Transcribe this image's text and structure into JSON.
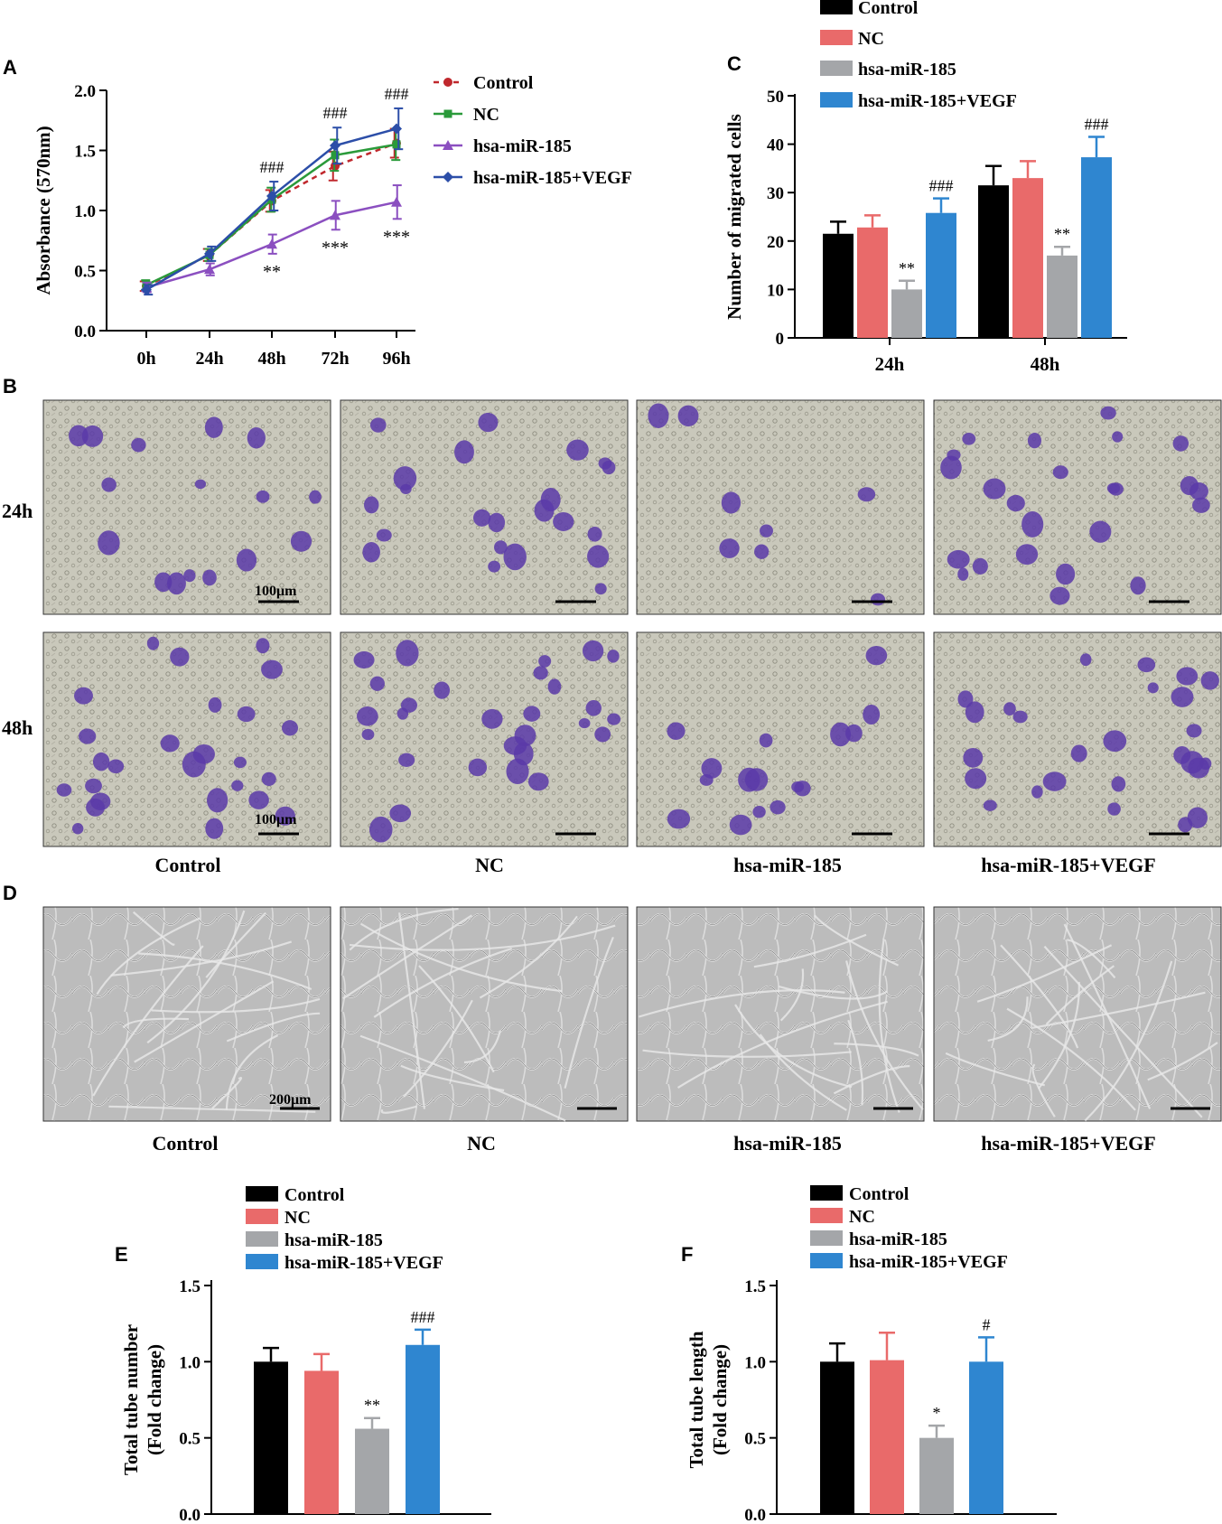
{
  "panels": {
    "A": "A",
    "B": "B",
    "C": "C",
    "D": "D",
    "E": "E",
    "F": "F"
  },
  "colors": {
    "control": "#000000",
    "nc": "#e96a6a",
    "mir185": "#a4a6a9",
    "vegf": "#2f86d0",
    "lineControl": "#c0282d",
    "lineNC": "#2a9a3a",
    "lineMir": "#8b4fc0",
    "lineVegf": "#2c4ea8",
    "stainPurple": "#5a3aa8",
    "micrographBg": "#c9c8bb",
    "tubeBg": "#b9b9b9"
  },
  "legend": [
    "Control",
    "NC",
    "hsa-miR-185",
    "hsa-miR-185+VEGF"
  ],
  "panelB": {
    "row_labels": [
      "24h",
      "48h"
    ],
    "scale_bar": "100μm",
    "column_labels": [
      "Control",
      "NC",
      "hsa-miR-185",
      "hsa-miR-185+VEGF"
    ]
  },
  "panelD": {
    "scale_bar": "200μm",
    "column_labels": [
      "Control",
      "NC",
      "hsa-miR-185",
      "hsa-miR-185+VEGF"
    ]
  },
  "chart_data": [
    {
      "panel": "A",
      "type": "line",
      "xlabel": "",
      "ylabel": "Absorbance (570nm)",
      "categories": [
        "0h",
        "24h",
        "48h",
        "72h",
        "96h"
      ],
      "ylim": [
        0,
        2.0
      ],
      "yticks": [
        "0.0",
        "0.5",
        "1.0",
        "1.5",
        "2.0"
      ],
      "series": [
        {
          "name": "Control",
          "values": [
            0.37,
            0.63,
            1.08,
            1.37,
            1.56
          ],
          "errors": [
            0.04,
            0.05,
            0.09,
            0.12,
            0.12
          ]
        },
        {
          "name": "NC",
          "values": [
            0.38,
            0.63,
            1.09,
            1.46,
            1.55
          ],
          "errors": [
            0.04,
            0.05,
            0.1,
            0.13,
            0.13
          ]
        },
        {
          "name": "hsa-miR-185",
          "values": [
            0.36,
            0.51,
            0.72,
            0.96,
            1.07
          ],
          "errors": [
            0.04,
            0.05,
            0.08,
            0.12,
            0.14
          ]
        },
        {
          "name": "hsa-miR-185+VEGF",
          "values": [
            0.34,
            0.64,
            1.12,
            1.54,
            1.68
          ],
          "errors": [
            0.04,
            0.06,
            0.12,
            0.15,
            0.17
          ]
        }
      ],
      "annotations": [
        {
          "text": "###",
          "category": "48h",
          "position": "above"
        },
        {
          "text": "###",
          "category": "72h",
          "position": "above"
        },
        {
          "text": "###",
          "category": "96h",
          "position": "above"
        },
        {
          "text": "**",
          "category": "48h",
          "position": "below"
        },
        {
          "text": "***",
          "category": "72h",
          "position": "below"
        },
        {
          "text": "***",
          "category": "96h",
          "position": "below"
        }
      ]
    },
    {
      "panel": "C",
      "type": "bar",
      "xlabel": "",
      "ylabel": "Number of migrated cells",
      "categories": [
        "24h",
        "48h"
      ],
      "ylim": [
        0,
        50
      ],
      "yticks": [
        "0",
        "10",
        "20",
        "30",
        "40",
        "50"
      ],
      "series": [
        {
          "name": "Control",
          "values": [
            21.5,
            31.5
          ],
          "errors": [
            2.5,
            4.0
          ]
        },
        {
          "name": "NC",
          "values": [
            22.8,
            33.0
          ],
          "errors": [
            2.5,
            3.5
          ]
        },
        {
          "name": "hsa-miR-185",
          "values": [
            10.0,
            17.0
          ],
          "errors": [
            1.8,
            1.8
          ]
        },
        {
          "name": "hsa-miR-185+VEGF",
          "values": [
            25.8,
            37.3
          ],
          "errors": [
            3.0,
            4.2
          ]
        }
      ],
      "annotations": [
        {
          "text": "**",
          "group": "24h",
          "series": "hsa-miR-185"
        },
        {
          "text": "###",
          "group": "24h",
          "series": "hsa-miR-185+VEGF"
        },
        {
          "text": "**",
          "group": "48h",
          "series": "hsa-miR-185"
        },
        {
          "text": "###",
          "group": "48h",
          "series": "hsa-miR-185+VEGF"
        }
      ]
    },
    {
      "panel": "E",
      "type": "bar",
      "xlabel": "",
      "ylabel": [
        "Total tube number",
        "(Fold change)"
      ],
      "categories": [
        "Control",
        "NC",
        "hsa-miR-185",
        "hsa-miR-185+VEGF"
      ],
      "ylim": [
        0,
        1.5
      ],
      "yticks": [
        "0.0",
        "0.5",
        "1.0",
        "1.5"
      ],
      "values": [
        1.0,
        0.94,
        0.56,
        1.11
      ],
      "errors": [
        0.09,
        0.11,
        0.07,
        0.1
      ],
      "annotations": [
        {
          "text": "**",
          "category": "hsa-miR-185"
        },
        {
          "text": "###",
          "category": "hsa-miR-185+VEGF"
        }
      ]
    },
    {
      "panel": "F",
      "type": "bar",
      "xlabel": "",
      "ylabel": [
        "Total tube length",
        "(Fold change)"
      ],
      "categories": [
        "Control",
        "NC",
        "hsa-miR-185",
        "hsa-miR-185+VEGF"
      ],
      "ylim": [
        0,
        1.5
      ],
      "yticks": [
        "0.0",
        "0.5",
        "1.0",
        "1.5"
      ],
      "values": [
        1.0,
        1.01,
        0.5,
        1.0
      ],
      "errors": [
        0.12,
        0.18,
        0.08,
        0.16
      ],
      "annotations": [
        {
          "text": "*",
          "category": "hsa-miR-185"
        },
        {
          "text": "#",
          "category": "hsa-miR-185+VEGF"
        }
      ]
    }
  ]
}
